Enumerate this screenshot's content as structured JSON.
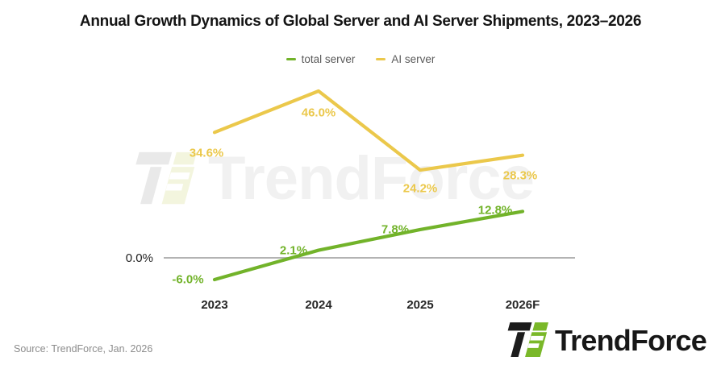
{
  "title": "Annual Growth Dynamics of Global Server and AI Server Shipments, 2023–2026",
  "legend": {
    "items": [
      {
        "label": "total server",
        "color": "#72b32a"
      },
      {
        "label": "AI server",
        "color": "#ebc84b"
      }
    ]
  },
  "chart_data": {
    "type": "line",
    "categories": [
      "2023",
      "2024",
      "2025",
      "2026F"
    ],
    "series": [
      {
        "name": "total server",
        "color": "#72b32a",
        "values": [
          -6.0,
          2.1,
          7.8,
          12.8
        ],
        "labels": [
          "-6.0%",
          "2.1%",
          "7.8%",
          "12.8%"
        ]
      },
      {
        "name": "AI server",
        "color": "#ebc84b",
        "values": [
          34.6,
          46.0,
          24.2,
          28.3
        ],
        "labels": [
          "34.6%",
          "46.0%",
          "24.2%",
          "28.3%"
        ]
      }
    ],
    "title": "Annual Growth Dynamics of Global Server and AI Server Shipments, 2023–2026",
    "xlabel": "",
    "ylabel": "",
    "y_zero_label": "0.0%",
    "grid": "zero-baseline-only",
    "legend_position": "top-center",
    "axis_color": "#b3b3b3"
  },
  "y_axis": {
    "zero_label": "0.0%"
  },
  "source": {
    "text": "Source: TrendForce, Jan. 2026"
  },
  "brand": {
    "logo_text": "TrendForce"
  },
  "watermark": {
    "text": "TrendForce"
  }
}
